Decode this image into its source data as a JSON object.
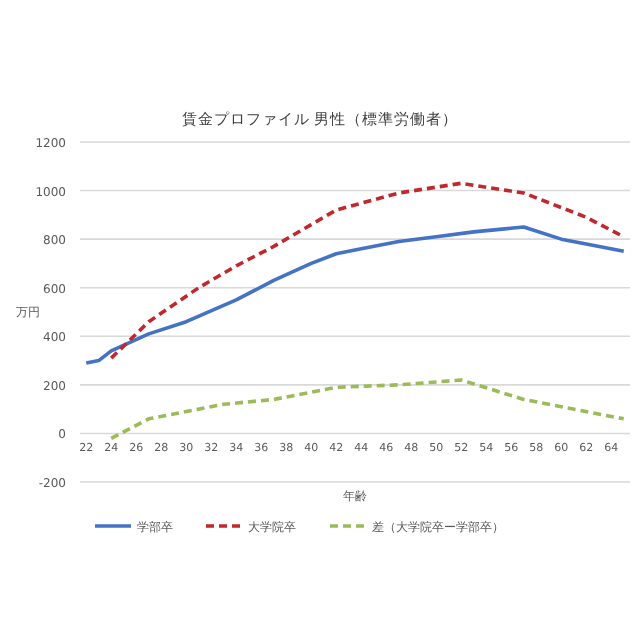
{
  "chart_data": {
    "type": "line",
    "title": "賃金プロファイル 男性（標準労働者）",
    "xlabel": "年齢",
    "ylabel": "万円",
    "xlim": [
      21.5,
      65.5
    ],
    "xticks": [
      22,
      24,
      26,
      28,
      30,
      32,
      34,
      36,
      38,
      40,
      42,
      44,
      46,
      48,
      50,
      52,
      54,
      56,
      58,
      60,
      62,
      64
    ],
    "ylim": [
      -200,
      1200
    ],
    "yticks": [
      -200,
      0,
      200,
      400,
      600,
      800,
      1000,
      1200
    ],
    "grid": "y",
    "legend": "bottom",
    "series": [
      {
        "name": "学部卒",
        "color": "#4472c4",
        "line_style": "solid",
        "x": [
          22,
          23,
          24,
          27,
          30,
          34,
          37,
          40,
          42,
          44,
          47,
          50,
          53,
          57,
          60,
          62,
          65
        ],
        "values": [
          290,
          300,
          340,
          410,
          460,
          550,
          630,
          700,
          740,
          760,
          790,
          810,
          830,
          850,
          800,
          780,
          750
        ]
      },
      {
        "name": "大学院卒",
        "color": "#c0282d",
        "line_style": "dashed",
        "x": [
          24,
          27,
          31,
          34,
          37,
          40,
          42,
          47,
          52,
          57,
          62,
          65
        ],
        "values": [
          310,
          460,
          600,
          690,
          770,
          860,
          920,
          990,
          1030,
          990,
          890,
          810
        ]
      },
      {
        "name": "差（大学院卒ー学部卒）",
        "color": "#9bbb59",
        "line_style": "dashed",
        "x": [
          24,
          27,
          30,
          33,
          37,
          40,
          42,
          47,
          52,
          57,
          60,
          65
        ],
        "values": [
          -20,
          60,
          90,
          120,
          140,
          170,
          190,
          200,
          220,
          140,
          110,
          60
        ]
      }
    ]
  }
}
